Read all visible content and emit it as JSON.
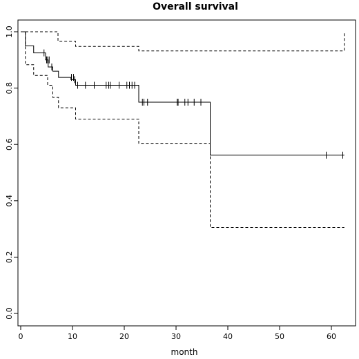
{
  "chart_data": {
    "type": "line",
    "title": "Overall survival",
    "xlabel": "month",
    "ylabel": "",
    "xlim": [
      0,
      65
    ],
    "ylim": [
      0,
      1
    ],
    "x_ticks": [
      0,
      10,
      20,
      30,
      40,
      50,
      60
    ],
    "x_tick_labels": [
      "0",
      "10",
      "20",
      "30",
      "40",
      "50",
      "60"
    ],
    "y_ticks": [
      0.0,
      0.2,
      0.4,
      0.6,
      0.8,
      1.0
    ],
    "y_tick_labels": [
      "0.0",
      "0.2",
      "0.4",
      "0.6",
      "0.8",
      "1.0"
    ],
    "grid": false,
    "series": [
      {
        "style": "solid",
        "x": [
          0,
          0.9,
          2.5,
          4.8,
          5.3,
          6.2,
          7.3,
          9.7,
          10.6,
          22.8,
          36.6,
          62.5
        ],
        "y": [
          1.0,
          0.95,
          0.925,
          0.9,
          0.875,
          0.86,
          0.838,
          0.83,
          0.81,
          0.75,
          0.562,
          0.562
        ],
        "censor_x": [
          4.5,
          5.0,
          5.2,
          5.5,
          6.0,
          9.8,
          10.2,
          10.4,
          11.0,
          12.5,
          14.2,
          16.5,
          17.0,
          17.3,
          19.0,
          20.5,
          21.0,
          21.5,
          22.0,
          23.5,
          23.8,
          24.5,
          30.2,
          30.4,
          31.7,
          32.3,
          33.5,
          34.8,
          59.0,
          62.2
        ],
        "censor_y": [
          0.925,
          0.9,
          0.9,
          0.9,
          0.875,
          0.838,
          0.838,
          0.83,
          0.81,
          0.81,
          0.81,
          0.81,
          0.81,
          0.81,
          0.81,
          0.81,
          0.81,
          0.81,
          0.81,
          0.75,
          0.75,
          0.75,
          0.75,
          0.75,
          0.75,
          0.75,
          0.75,
          0.75,
          0.562,
          0.562
        ]
      },
      {
        "style": "dashed",
        "x": [
          0,
          5.0,
          7.2,
          10.6,
          22.8,
          62.5,
          62.5
        ],
        "y": [
          1.0,
          1.0,
          0.966,
          0.948,
          0.932,
          0.932,
          1.0
        ]
      },
      {
        "style": "dashed",
        "x": [
          0,
          0.9,
          2.5,
          5.2,
          6.2,
          7.3,
          10.6,
          22.8,
          36.6,
          62.5
        ],
        "y": [
          1.0,
          0.883,
          0.845,
          0.81,
          0.767,
          0.73,
          0.69,
          0.604,
          0.305,
          0.305
        ]
      }
    ]
  }
}
